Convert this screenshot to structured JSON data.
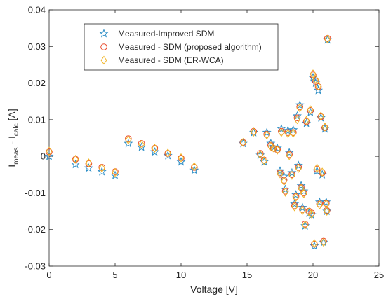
{
  "chart_data": {
    "type": "scatter",
    "xlabel": "Voltage [V]",
    "ylabel": {
      "main": "I",
      "sub1": "meas",
      "mid": " - I",
      "sub2": "calc",
      "unit": " [A]"
    },
    "xlim": [
      0,
      25
    ],
    "ylim": [
      -0.03,
      0.04
    ],
    "x_ticks": [
      0,
      5,
      10,
      15,
      20,
      25
    ],
    "x_tick_labels": [
      "0",
      "5",
      "10",
      "15",
      "20",
      "25"
    ],
    "y_ticks": [
      -0.03,
      -0.02,
      -0.01,
      0,
      0.01,
      0.02,
      0.03,
      0.04
    ],
    "y_tick_labels": [
      "-0.03",
      "-0.02",
      "-0.01",
      "0",
      "0.01",
      "0.02",
      "0.03",
      "0.04"
    ],
    "grid": false,
    "legend_position": "top-left",
    "series": [
      {
        "name": "Measured-Improved SDM",
        "marker": "star",
        "color": "#2f8fc6",
        "points": [
          [
            0,
            0.0
          ],
          [
            2,
            -0.0022
          ],
          [
            3,
            -0.0032
          ],
          [
            4,
            -0.0042
          ],
          [
            5,
            -0.0052
          ],
          [
            6,
            0.0035
          ],
          [
            7,
            0.0025
          ],
          [
            8,
            0.0012
          ],
          [
            9,
            0.0002
          ],
          [
            10,
            -0.0015
          ],
          [
            11,
            -0.0038
          ],
          [
            14.7,
            0.0035
          ],
          [
            15.5,
            0.0065
          ],
          [
            16.0,
            0.0003
          ],
          [
            16.3,
            -0.0015
          ],
          [
            16.5,
            0.0065
          ],
          [
            16.8,
            0.0035
          ],
          [
            17.0,
            0.0025
          ],
          [
            17.3,
            0.0022
          ],
          [
            17.5,
            -0.004
          ],
          [
            17.6,
            0.0075
          ],
          [
            17.8,
            -0.0055
          ],
          [
            17.9,
            -0.009
          ],
          [
            18.1,
            0.007
          ],
          [
            18.2,
            0.001
          ],
          [
            18.4,
            -0.0045
          ],
          [
            18.5,
            0.0072
          ],
          [
            18.6,
            -0.013
          ],
          [
            18.7,
            -0.0105
          ],
          [
            18.8,
            0.011
          ],
          [
            18.9,
            -0.0025
          ],
          [
            19.0,
            0.014
          ],
          [
            19.1,
            -0.008
          ],
          [
            19.2,
            -0.014
          ],
          [
            19.3,
            -0.0095
          ],
          [
            19.4,
            -0.019
          ],
          [
            19.5,
            0.009
          ],
          [
            19.7,
            -0.0155
          ],
          [
            19.8,
            0.012
          ],
          [
            19.9,
            -0.016
          ],
          [
            20.0,
            0.0215
          ],
          [
            20.1,
            -0.0245
          ],
          [
            20.2,
            0.02
          ],
          [
            20.3,
            -0.004
          ],
          [
            20.4,
            0.018
          ],
          [
            20.5,
            -0.0125
          ],
          [
            20.6,
            0.0105
          ],
          [
            20.7,
            -0.005
          ],
          [
            20.8,
            -0.0235
          ],
          [
            20.9,
            0.0075
          ],
          [
            21.0,
            -0.0125
          ],
          [
            21.1,
            0.0318
          ],
          [
            21.05,
            -0.015
          ]
        ]
      },
      {
        "name": "Measured - SDM (proposed algorithm)",
        "marker": "circle",
        "color": "#e8482a",
        "points": [
          [
            0,
            0.0012
          ],
          [
            2,
            -0.0008
          ],
          [
            3,
            -0.002
          ],
          [
            4,
            -0.003
          ],
          [
            5,
            -0.0042
          ],
          [
            6,
            0.0048
          ],
          [
            7,
            0.0035
          ],
          [
            8,
            0.0022
          ],
          [
            9,
            0.0008
          ],
          [
            10,
            -0.0005
          ],
          [
            11,
            -0.003
          ],
          [
            14.7,
            0.0038
          ],
          [
            15.5,
            0.0068
          ],
          [
            16.0,
            0.0008
          ],
          [
            16.3,
            -0.001
          ],
          [
            16.5,
            0.006
          ],
          [
            16.8,
            0.003
          ],
          [
            17.0,
            0.0022
          ],
          [
            17.3,
            0.0018
          ],
          [
            17.5,
            -0.0045
          ],
          [
            17.6,
            0.0068
          ],
          [
            17.8,
            -0.0065
          ],
          [
            17.9,
            -0.0095
          ],
          [
            18.1,
            0.0065
          ],
          [
            18.2,
            0.0005
          ],
          [
            18.4,
            -0.005
          ],
          [
            18.5,
            0.0065
          ],
          [
            18.6,
            -0.0135
          ],
          [
            18.7,
            -0.011
          ],
          [
            18.8,
            0.0105
          ],
          [
            18.9,
            -0.003
          ],
          [
            19.0,
            0.0135
          ],
          [
            19.1,
            -0.0085
          ],
          [
            19.2,
            -0.0145
          ],
          [
            19.3,
            -0.01
          ],
          [
            19.4,
            -0.0185
          ],
          [
            19.5,
            0.0095
          ],
          [
            19.7,
            -0.015
          ],
          [
            19.8,
            0.0125
          ],
          [
            19.9,
            -0.0155
          ],
          [
            20.0,
            0.0222
          ],
          [
            20.1,
            -0.024
          ],
          [
            20.2,
            0.0205
          ],
          [
            20.3,
            -0.0035
          ],
          [
            20.4,
            0.019
          ],
          [
            20.5,
            -0.013
          ],
          [
            20.6,
            0.0108
          ],
          [
            20.7,
            -0.0045
          ],
          [
            20.8,
            -0.0232
          ],
          [
            20.9,
            0.0078
          ],
          [
            21.0,
            -0.0128
          ],
          [
            21.1,
            0.0322
          ],
          [
            21.05,
            -0.0148
          ]
        ]
      },
      {
        "name": "Measured - SDM (ER-WCA)",
        "marker": "diamond",
        "color": "#f0b323",
        "points": [
          [
            0,
            0.0014
          ],
          [
            2,
            -0.0008
          ],
          [
            3,
            -0.0018
          ],
          [
            4,
            -0.0032
          ],
          [
            5,
            -0.0044
          ],
          [
            6,
            0.0045
          ],
          [
            7,
            0.0032
          ],
          [
            8,
            0.0022
          ],
          [
            9,
            0.0009
          ],
          [
            10,
            -0.0004
          ],
          [
            11,
            -0.0028
          ],
          [
            14.7,
            0.0038
          ],
          [
            15.5,
            0.0066
          ],
          [
            16.0,
            0.0005
          ],
          [
            16.3,
            -0.0012
          ],
          [
            16.5,
            0.0058
          ],
          [
            16.8,
            0.0027
          ],
          [
            17.0,
            0.0023
          ],
          [
            17.3,
            0.0017
          ],
          [
            17.5,
            -0.0048
          ],
          [
            17.6,
            0.0065
          ],
          [
            17.8,
            -0.0068
          ],
          [
            17.9,
            -0.0098
          ],
          [
            18.1,
            0.0062
          ],
          [
            18.2,
            0.0002
          ],
          [
            18.4,
            -0.0052
          ],
          [
            18.5,
            0.0063
          ],
          [
            18.6,
            -0.0138
          ],
          [
            18.7,
            -0.0112
          ],
          [
            18.8,
            0.01
          ],
          [
            18.9,
            -0.0033
          ],
          [
            19.0,
            0.0132
          ],
          [
            19.1,
            -0.0088
          ],
          [
            19.2,
            -0.0148
          ],
          [
            19.3,
            -0.0102
          ],
          [
            19.4,
            -0.0188
          ],
          [
            19.5,
            0.0098
          ],
          [
            19.7,
            -0.0152
          ],
          [
            19.8,
            0.0127
          ],
          [
            19.9,
            -0.0158
          ],
          [
            20.0,
            0.0225
          ],
          [
            20.1,
            -0.0238
          ],
          [
            20.2,
            0.021
          ],
          [
            20.3,
            -0.0032
          ],
          [
            20.4,
            0.0192
          ],
          [
            20.5,
            -0.0133
          ],
          [
            20.6,
            0.011
          ],
          [
            20.7,
            -0.0043
          ],
          [
            20.8,
            -0.0235
          ],
          [
            20.9,
            0.008
          ],
          [
            21.0,
            -0.013
          ],
          [
            21.1,
            0.032
          ],
          [
            21.05,
            -0.015
          ]
        ]
      }
    ]
  }
}
